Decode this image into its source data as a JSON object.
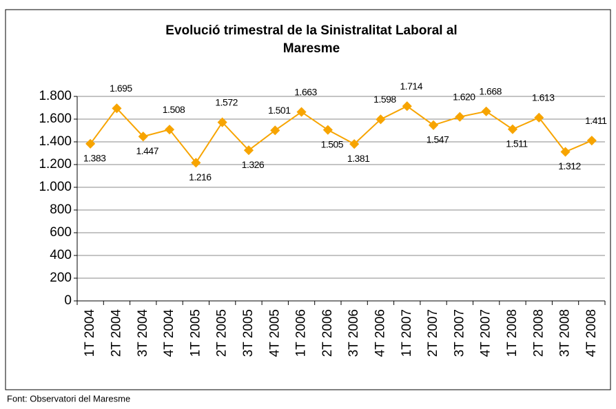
{
  "chart_data": {
    "type": "line",
    "title": "Evolució trimestral de la Sinistralitat Laboral al Maresme",
    "source": "Font: Observatori del Maresme",
    "categories": [
      "1T 2004",
      "2T 2004",
      "3T 2004",
      "4T 2004",
      "1T 2005",
      "2T 2005",
      "3T 2005",
      "4T 2005",
      "1T 2006",
      "2T 2006",
      "3T 2006",
      "4T 2006",
      "1T 2007",
      "2T 2007",
      "3T 2007",
      "4T 2007",
      "1T 2008",
      "2T 2008",
      "3T 2008",
      "4T 2008"
    ],
    "values": [
      1383,
      1695,
      1447,
      1508,
      1216,
      1572,
      1326,
      1501,
      1663,
      1505,
      1381,
      1598,
      1714,
      1547,
      1620,
      1668,
      1511,
      1613,
      1312,
      1411
    ],
    "value_labels": [
      "1.383",
      "1.695",
      "1.447",
      "1.508",
      "1.216",
      "1.572",
      "1.326",
      "1.501",
      "1.663",
      "1.505",
      "1.381",
      "1.598",
      "1.714",
      "1.547",
      "1.620",
      "1.668",
      "1.511",
      "1.613",
      "1.312",
      "1.411"
    ],
    "color": "#f7a400",
    "ylim": [
      0,
      1800
    ],
    "yticks": [
      0,
      200,
      400,
      600,
      800,
      {
        "value": 1000,
        "label": "1.000"
      },
      {
        "value": 1200,
        "label": "1.200"
      },
      {
        "value": 1400,
        "label": "1.400"
      },
      {
        "value": 1600,
        "label": "1.600"
      },
      {
        "value": 1800,
        "label": "1.800"
      }
    ],
    "grid": true
  }
}
